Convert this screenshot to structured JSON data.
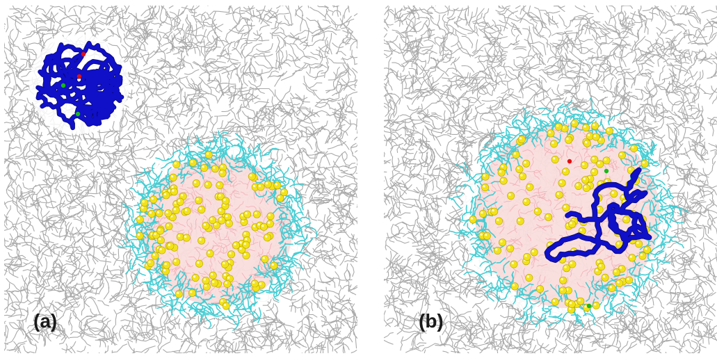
{
  "panels": [
    {
      "label": "(a)",
      "solvent_color": "#9a9a9a",
      "polymer_color": "#1010c8",
      "micelle_core_color": "#f6c4c4",
      "micelle_shell_color": "#33c9cf",
      "headgroup_color": "#f2e21a"
    },
    {
      "label": "(b)",
      "solvent_color": "#9a9a9a",
      "polymer_color": "#1010c8",
      "micelle_core_color": "#f6c4c4",
      "micelle_shell_color": "#33c9cf",
      "headgroup_color": "#f2e21a"
    }
  ],
  "marker_colors": {
    "red": "#e01010",
    "green": "#18b818"
  }
}
